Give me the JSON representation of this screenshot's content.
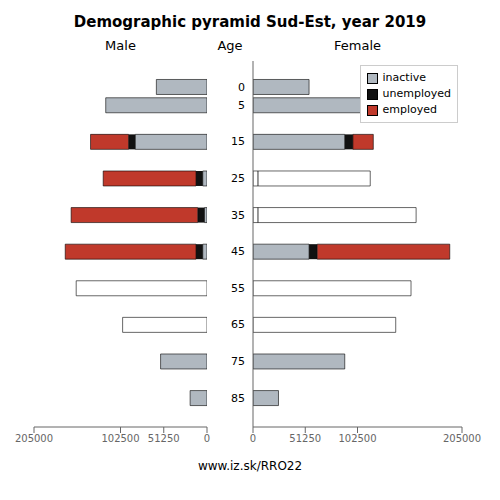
{
  "chart_data": {
    "type": "bar",
    "orientation": "horizontal",
    "stacked": true,
    "title": "Demographic pyramid Sud-Est, year 2019",
    "ylabel": "Age",
    "y": [
      85,
      75,
      65,
      55,
      45,
      35,
      25,
      15,
      5,
      0
    ],
    "ylim": [
      -7,
      93
    ],
    "yticks": [
      85,
      75,
      65,
      55,
      45,
      35,
      25,
      15,
      5,
      0
    ],
    "legend": "upper right",
    "annotations": [
      "www.iz.sk/RRO22"
    ],
    "panels": [
      {
        "title": "Male",
        "xlim": [
          205000,
          0
        ],
        "xticks": [
          205000,
          102500,
          51250,
          0
        ],
        "series": [
          {
            "name": "inactive",
            "color": "#b0b8c0",
            "colors": [
              "#b0b8c0",
              "#b0b8c0",
              "#ffffff",
              "#ffffff",
              "#b0b8c0",
              "#b0b8c0",
              "#b0b8c0",
              "#b0b8c0",
              "#b0b8c0",
              "#b0b8c0"
            ],
            "values": [
              20000,
              55000,
              100000,
              155000,
              5000,
              3000,
              5000,
              85000,
              120000,
              60000
            ]
          },
          {
            "name": "unemployed",
            "color": "#111111",
            "values": [
              0,
              0,
              0,
              0,
              8000,
              8000,
              8000,
              8000,
              0,
              0
            ]
          },
          {
            "name": "employed",
            "color": "#c0392b",
            "values": [
              0,
              0,
              0,
              0,
              155000,
              150000,
              110000,
              45000,
              0,
              0
            ]
          }
        ]
      },
      {
        "title": "Female",
        "xlim": [
          0,
          205000
        ],
        "xticks": [
          0,
          51250,
          102500,
          205000
        ],
        "series": [
          {
            "name": "inactive",
            "color": "#b0b8c0",
            "colors": [
              "#b0b8c0",
              "#b0b8c0",
              "#ffffff",
              "#ffffff",
              "#b0b8c0",
              "#ffffff",
              "#ffffff",
              "#b0b8c0",
              "#b0b8c0",
              "#b0b8c0"
            ],
            "values": [
              25000,
              90000,
              140000,
              155000,
              55000,
              5000,
              5000,
              90000,
              115000,
              55000
            ]
          },
          {
            "name": "unemployed",
            "color": "#111111",
            "values": [
              0,
              0,
              0,
              0,
              8000,
              0,
              0,
              8000,
              0,
              0
            ]
          },
          {
            "name": "employed",
            "color": "#c0392b",
            "colors": [
              "#c0392b",
              "#c0392b",
              "#ffffff",
              "#ffffff",
              "#c0392b",
              "#ffffff",
              "#ffffff",
              "#c0392b",
              "#c0392b",
              "#c0392b"
            ],
            "values": [
              0,
              0,
              0,
              0,
              130000,
              155000,
              110000,
              20000,
              0,
              0
            ]
          }
        ]
      }
    ]
  }
}
